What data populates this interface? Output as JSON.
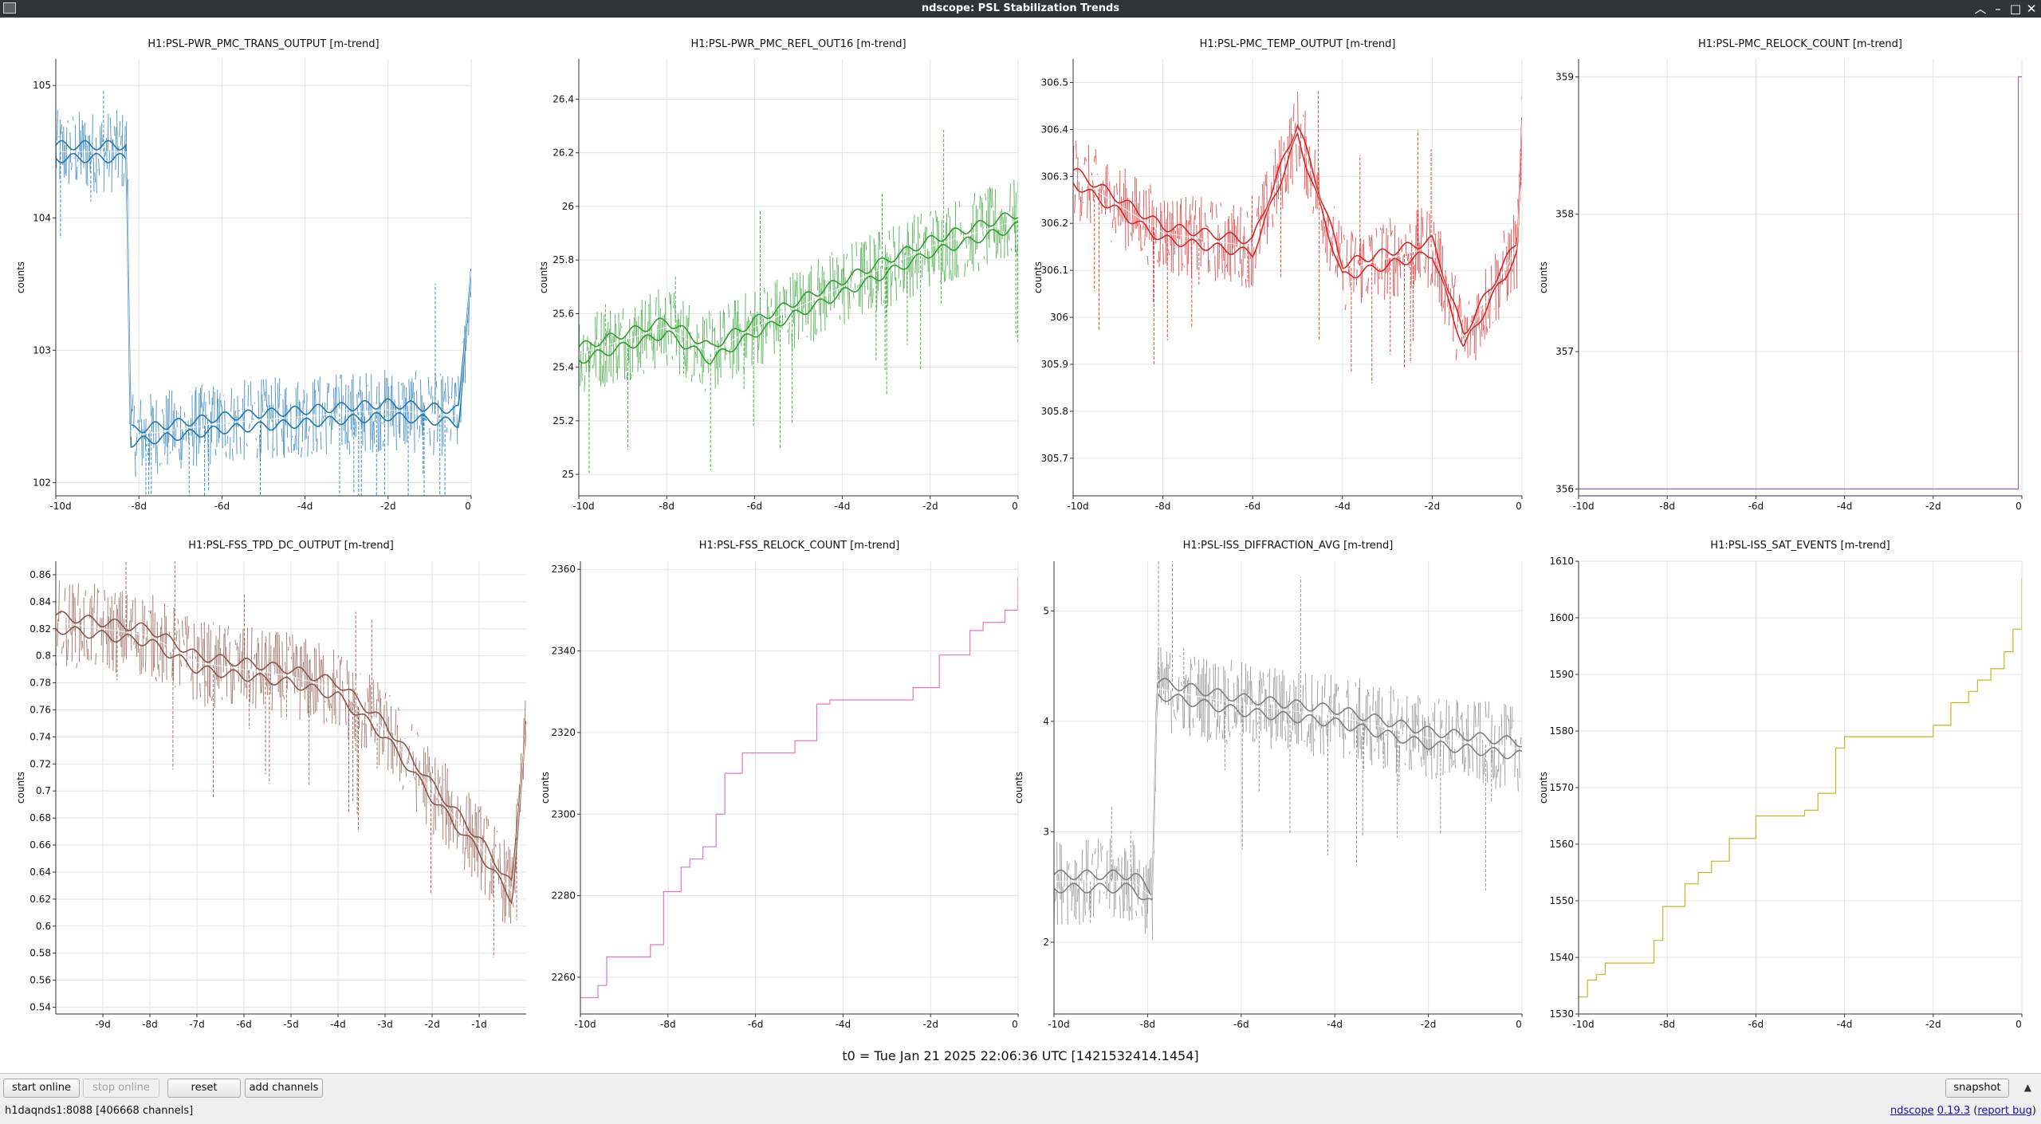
{
  "window": {
    "title": "ndscope: PSL Stabilization Trends"
  },
  "plots": [
    {
      "title": "H1:PSL-PWR_PMC_TRANS_OUTPUT [m-trend]",
      "ylabel": "counts",
      "color": "#1f77b4",
      "kind": "noise",
      "ylim": [
        101.9,
        105.2
      ],
      "yticks": [
        "105",
        "104",
        "103",
        "102"
      ],
      "ytickvals": [
        105,
        104,
        103,
        102
      ],
      "xtick_labels": [
        "-10d",
        "-8d",
        "-6d",
        "-4d",
        "-2d",
        "0"
      ],
      "xtick_vals": [
        -10,
        -8,
        -6,
        -4,
        -2,
        0
      ],
      "levels": [
        [
          -10,
          104.5
        ],
        [
          -8.3,
          104.5
        ],
        [
          -8.2,
          102.35
        ],
        [
          -6,
          102.45
        ],
        [
          -4,
          102.5
        ],
        [
          -2,
          102.55
        ],
        [
          -0.3,
          102.5
        ],
        [
          0,
          103.6
        ]
      ]
    },
    {
      "title": "H1:PSL-PWR_PMC_REFL_OUT16 [m-trend]",
      "ylabel": "counts",
      "color": "#2ca02c",
      "kind": "noise",
      "ylim": [
        24.92,
        26.55
      ],
      "yticks": [
        "26.4",
        "26.2",
        "26",
        "25.8",
        "25.6",
        "25.4",
        "25.2",
        "25"
      ],
      "ytickvals": [
        26.4,
        26.2,
        26,
        25.8,
        25.6,
        25.4,
        25.2,
        25
      ],
      "xtick_labels": [
        "-10d",
        "-8d",
        "-6d",
        "-4d",
        "-2d",
        "0"
      ],
      "xtick_vals": [
        -10,
        -8,
        -6,
        -4,
        -2,
        0
      ],
      "levels": [
        [
          -10,
          25.45
        ],
        [
          -8,
          25.55
        ],
        [
          -7,
          25.45
        ],
        [
          -6,
          25.55
        ],
        [
          -4,
          25.7
        ],
        [
          -2,
          25.85
        ],
        [
          0,
          25.95
        ]
      ]
    },
    {
      "title": "H1:PSL-PMC_TEMP_OUTPUT [m-trend]",
      "ylabel": "counts",
      "color": "#d62728",
      "kind": "noise",
      "ylim": [
        305.62,
        306.55
      ],
      "yticks": [
        "306.5",
        "306.4",
        "306.3",
        "306.2",
        "306.1",
        "306",
        "305.9",
        "305.8",
        "305.7"
      ],
      "ytickvals": [
        306.5,
        306.4,
        306.3,
        306.2,
        306.1,
        306,
        305.9,
        305.8,
        305.7
      ],
      "xtick_labels": [
        "-10d",
        "-8d",
        "-6d",
        "-4d",
        "-2d",
        "0"
      ],
      "xtick_vals": [
        -10,
        -8,
        -6,
        -4,
        -2,
        0
      ],
      "levels": [
        [
          -10,
          306.3
        ],
        [
          -8,
          306.18
        ],
        [
          -6,
          306.15
        ],
        [
          -5,
          306.4
        ],
        [
          -4,
          306.1
        ],
        [
          -2,
          306.15
        ],
        [
          -1.3,
          305.95
        ],
        [
          -0.1,
          306.15
        ],
        [
          0,
          306.42
        ]
      ]
    },
    {
      "title": "H1:PSL-PMC_RELOCK_COUNT [m-trend]",
      "ylabel": "counts",
      "color": "#9467bd",
      "kind": "step",
      "ylim": [
        355.95,
        359.13
      ],
      "yticks": [
        "359",
        "358",
        "357",
        "356"
      ],
      "ytickvals": [
        359,
        358,
        357,
        356
      ],
      "xtick_labels": [
        "-10d",
        "-8d",
        "-6d",
        "-4d",
        "-2d",
        "0"
      ],
      "xtick_vals": [
        -10,
        -8,
        -6,
        -4,
        -2,
        0
      ],
      "levels": [
        [
          -10,
          356
        ],
        [
          -0.08,
          356
        ],
        [
          -0.08,
          359
        ],
        [
          0,
          359
        ]
      ]
    },
    {
      "title": "H1:PSL-FSS_TPD_DC_OUTPUT [m-trend]",
      "ylabel": "counts",
      "color": "#8c564b",
      "kind": "noise",
      "ylim": [
        0.535,
        0.87
      ],
      "yticks": [
        "0.86",
        "0.84",
        "0.82",
        "0.8",
        "0.78",
        "0.76",
        "0.74",
        "0.72",
        "0.7",
        "0.68",
        "0.66",
        "0.64",
        "0.62",
        "0.6",
        "0.58",
        "0.56",
        "0.54"
      ],
      "ytickvals": [
        0.86,
        0.84,
        0.82,
        0.8,
        0.78,
        0.76,
        0.74,
        0.72,
        0.7,
        0.68,
        0.66,
        0.64,
        0.62,
        0.6,
        0.58,
        0.56,
        0.54
      ],
      "xtick_labels": [
        "-9d",
        "-8d",
        "-7d",
        "-6d",
        "-5d",
        "-4d",
        "-3d",
        "-2d",
        "-1d"
      ],
      "xtick_vals": [
        -9,
        -8,
        -7,
        -6,
        -5,
        -4,
        -3,
        -2,
        -1
      ],
      "xlim": [
        -10,
        0
      ],
      "levels": [
        [
          -10,
          0.825
        ],
        [
          -8,
          0.815
        ],
        [
          -7,
          0.795
        ],
        [
          -5,
          0.785
        ],
        [
          -4,
          0.775
        ],
        [
          -3,
          0.745
        ],
        [
          -2,
          0.7
        ],
        [
          -1,
          0.66
        ],
        [
          -0.3,
          0.625
        ],
        [
          0,
          0.75
        ]
      ]
    },
    {
      "title": "H1:PSL-FSS_RELOCK_COUNT [m-trend]",
      "ylabel": "counts",
      "color": "#e377c2",
      "kind": "step",
      "ylim": [
        2251,
        2362
      ],
      "yticks": [
        "2360",
        "2340",
        "2320",
        "2300",
        "2280",
        "2260"
      ],
      "ytickvals": [
        2360,
        2340,
        2320,
        2300,
        2280,
        2260
      ],
      "xtick_labels": [
        "-10d",
        "-8d",
        "-6d",
        "-4d",
        "-2d",
        "0"
      ],
      "xtick_vals": [
        -10,
        -8,
        -6,
        -4,
        -2,
        0
      ],
      "levels": [
        [
          -10,
          2255
        ],
        [
          -9.6,
          2258
        ],
        [
          -9.4,
          2265
        ],
        [
          -8.4,
          2268
        ],
        [
          -8.1,
          2281
        ],
        [
          -7.7,
          2287
        ],
        [
          -7.5,
          2289
        ],
        [
          -7.2,
          2292
        ],
        [
          -6.9,
          2300
        ],
        [
          -6.7,
          2310
        ],
        [
          -6.3,
          2315
        ],
        [
          -5.1,
          2318
        ],
        [
          -4.6,
          2327
        ],
        [
          -4.3,
          2328
        ],
        [
          -2.4,
          2331
        ],
        [
          -1.8,
          2339
        ],
        [
          -1.1,
          2345
        ],
        [
          -0.8,
          2347
        ],
        [
          -0.3,
          2350
        ],
        [
          0,
          2358
        ]
      ]
    },
    {
      "title": "H1:PSL-ISS_DIFFRACTION_AVG [m-trend]",
      "ylabel": "counts",
      "color": "#7f7f7f",
      "kind": "noise",
      "ylim": [
        1.35,
        5.45
      ],
      "yticks": [
        "5",
        "4",
        "3",
        "2"
      ],
      "ytickvals": [
        5,
        4,
        3,
        2
      ],
      "xtick_labels": [
        "-10d",
        "-8d",
        "-6d",
        "-4d",
        "-2d",
        "0"
      ],
      "xtick_vals": [
        -10,
        -8,
        -6,
        -4,
        -2,
        0
      ],
      "levels": [
        [
          -10,
          2.55
        ],
        [
          -8.3,
          2.55
        ],
        [
          -7.9,
          2.4
        ],
        [
          -7.8,
          4.3
        ],
        [
          -6,
          4.15
        ],
        [
          -4,
          4.05
        ],
        [
          -2,
          3.85
        ],
        [
          0,
          3.75
        ]
      ]
    },
    {
      "title": "H1:PSL-ISS_SAT_EVENTS [m-trend]",
      "ylabel": "counts",
      "color": "#bcbd22",
      "kind": "step",
      "ylim": [
        1530,
        1610
      ],
      "yticks": [
        "1610",
        "1600",
        "1590",
        "1580",
        "1570",
        "1560",
        "1550",
        "1540",
        "1530"
      ],
      "ytickvals": [
        1610,
        1600,
        1590,
        1580,
        1570,
        1560,
        1550,
        1540,
        1530
      ],
      "xtick_labels": [
        "-10d",
        "-8d",
        "-6d",
        "-4d",
        "-2d",
        "0"
      ],
      "xtick_vals": [
        -10,
        -8,
        -6,
        -4,
        -2,
        0
      ],
      "levels": [
        [
          -10,
          1533
        ],
        [
          -9.8,
          1536
        ],
        [
          -9.6,
          1537
        ],
        [
          -9.4,
          1539
        ],
        [
          -8.3,
          1543
        ],
        [
          -8.1,
          1549
        ],
        [
          -7.6,
          1553
        ],
        [
          -7.3,
          1555
        ],
        [
          -7,
          1557
        ],
        [
          -6.6,
          1561
        ],
        [
          -6,
          1565
        ],
        [
          -4.9,
          1566
        ],
        [
          -4.6,
          1569
        ],
        [
          -4.2,
          1577
        ],
        [
          -4,
          1579
        ],
        [
          -2,
          1581
        ],
        [
          -1.6,
          1585
        ],
        [
          -1.2,
          1587
        ],
        [
          -1,
          1589
        ],
        [
          -0.7,
          1591
        ],
        [
          -0.4,
          1594
        ],
        [
          -0.2,
          1598
        ],
        [
          0,
          1607
        ]
      ]
    }
  ],
  "t0_label": "t0 = Tue Jan 21 2025 22:06:36 UTC [1421532414.1454]",
  "toolbar": {
    "start_online": "start online",
    "stop_online": "stop online",
    "reset": "reset",
    "add_channels": "add channels",
    "snapshot": "snapshot"
  },
  "status": {
    "server": "h1daqnds1:8088  [406668 channels]"
  },
  "version": {
    "name": "ndscope",
    "number": "0.19.3",
    "report": "report bug"
  }
}
